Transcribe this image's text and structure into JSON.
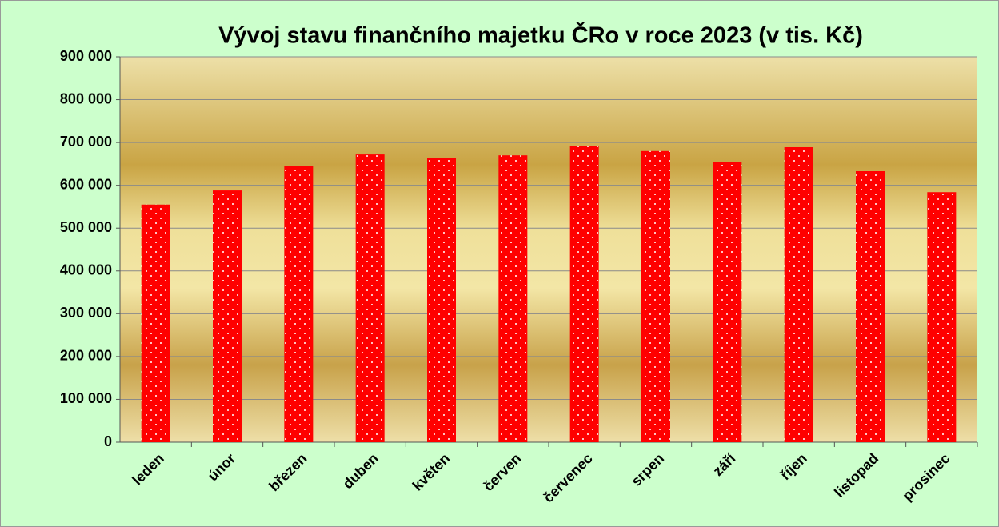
{
  "chart_data": {
    "type": "bar",
    "title": "Vývoj stavu finančního majetku ČRo v roce 2023  (v tis. Kč)",
    "categories": [
      "leden",
      "únor",
      "březen",
      "duben",
      "květen",
      "červen",
      "červenec",
      "srpen",
      "září",
      "říjen",
      "listopad",
      "prosinec"
    ],
    "values": [
      555000,
      588000,
      646000,
      672000,
      663000,
      670000,
      691000,
      680000,
      655000,
      689000,
      633000,
      584000
    ],
    "color": "#ff0000",
    "ylim": [
      0,
      900000
    ],
    "yticks": [
      {
        "value": 0,
        "label": "0"
      },
      {
        "value": 100000,
        "label": "100 000"
      },
      {
        "value": 200000,
        "label": "200 000"
      },
      {
        "value": 300000,
        "label": "300 000"
      },
      {
        "value": 400000,
        "label": "400 000"
      },
      {
        "value": 500000,
        "label": "500 000"
      },
      {
        "value": 600000,
        "label": "600 000"
      },
      {
        "value": 700000,
        "label": "700 000"
      },
      {
        "value": 800000,
        "label": "800 000"
      },
      {
        "value": 900000,
        "label": "900 000"
      }
    ],
    "grid": true
  }
}
